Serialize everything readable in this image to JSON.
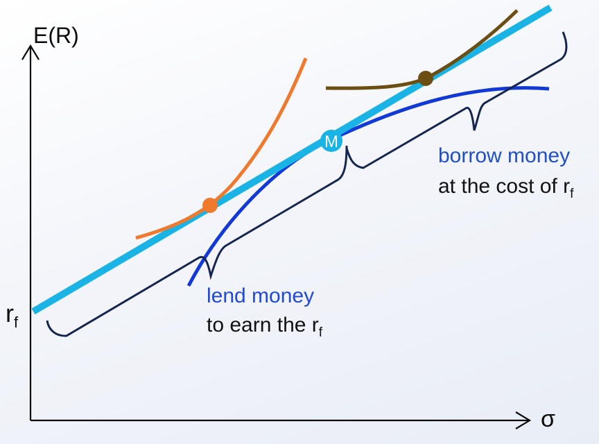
{
  "axes": {
    "y_label": "E(R)",
    "x_label": "σ",
    "rf_label": "r",
    "rf_sub": "f"
  },
  "market_point": {
    "label": "M"
  },
  "annotations": {
    "lend_line1": "lend money",
    "lend_line2": "to earn the r",
    "lend_line2_sub": "f",
    "borrow_line1": "borrow money",
    "borrow_line2": "at the cost of r",
    "borrow_line2_sub": "f"
  },
  "colors": {
    "axis": "#0a0a0a",
    "capital_market_line": "#1ab3e6",
    "efficient_frontier": "#1239d6",
    "lending_indifference": "#ef7a2e",
    "borrowing_indifference": "#6b4e12",
    "brace": "#14254f",
    "lend_text": "#2149d4",
    "borrow_text": "#1f4fc2",
    "body_text": "#111111"
  }
}
